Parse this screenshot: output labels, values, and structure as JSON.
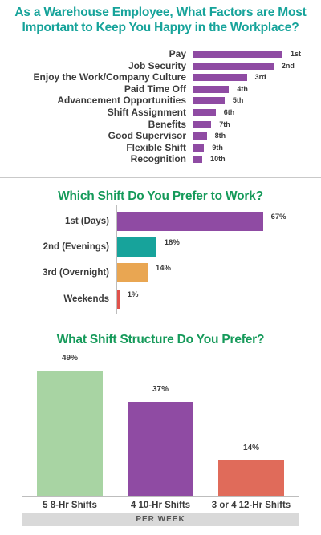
{
  "colors": {
    "purple": "#8f4ba3",
    "teal": "#17a39b",
    "orange": "#e9a652",
    "red": "#e0524b",
    "green": "#a8d4a3",
    "salmon": "#e06b5a",
    "title_teal": "#16a39a",
    "title_green": "#159a5a"
  },
  "chart_data": [
    {
      "type": "bar",
      "orientation": "horizontal",
      "title": "As a Warehouse Employee, What Factors are Most Important to Keep You Happy in the Workplace?",
      "categories": [
        "Pay",
        "Job Security",
        "Enjoy the Work/Company Culture",
        "Paid Time Off",
        "Advancement Opportunities",
        "Shift Assignment",
        "Benefits",
        "Good Supervisor",
        "Flexible Shift",
        "Recognition"
      ],
      "data_labels": [
        "1st",
        "2nd",
        "3rd",
        "4th",
        "5th",
        "6th",
        "7th",
        "8th",
        "9th",
        "10th"
      ],
      "values": [
        10,
        9,
        6,
        4,
        3.5,
        2.5,
        2,
        1.5,
        1.2,
        1
      ],
      "color": "#8f4ba3"
    },
    {
      "type": "bar",
      "orientation": "horizontal",
      "title": "Which Shift Do You Prefer to Work?",
      "categories": [
        "1st (Days)",
        "2nd (Evenings)",
        "3rd (Overnight)",
        "Weekends"
      ],
      "values": [
        67,
        18,
        14,
        1
      ],
      "data_labels": [
        "67%",
        "18%",
        "14%",
        "1%"
      ],
      "colors": [
        "#8f4ba3",
        "#17a39b",
        "#e9a652",
        "#e0524b"
      ]
    },
    {
      "type": "bar",
      "orientation": "vertical",
      "title": "What Shift Structure Do You Prefer?",
      "categories": [
        "5 8-Hr Shifts",
        "4 10-Hr Shifts",
        "3 or 4 12-Hr Shifts"
      ],
      "values": [
        49,
        37,
        14
      ],
      "data_labels": [
        "49%",
        "37%",
        "14%"
      ],
      "colors": [
        "#a8d4a3",
        "#8f4ba3",
        "#e06b5a"
      ],
      "xlabel": "PER WEEK"
    }
  ]
}
